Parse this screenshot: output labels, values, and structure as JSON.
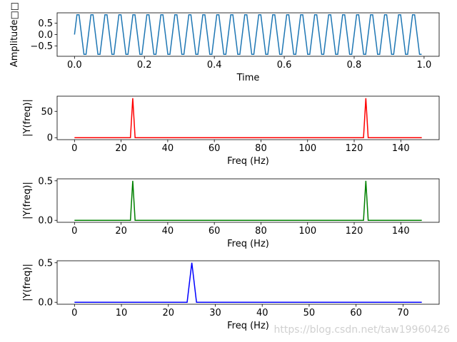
{
  "chart_data": [
    {
      "type": "line",
      "ylabel": "Amplitude□□",
      "xlabel": "Time",
      "color": "#1f77b4",
      "x": [
        0,
        0.007,
        0.013,
        0.02,
        0.027,
        0.033,
        0.04,
        0.047,
        0.053,
        0.06,
        0.067,
        0.073,
        0.08,
        0.087,
        0.093,
        0.1,
        0.107,
        0.113,
        0.12,
        0.127,
        0.133,
        0.14,
        0.147,
        0.153,
        0.16,
        0.167,
        0.173,
        0.18,
        0.187,
        0.193,
        0.2,
        0.207,
        0.213,
        0.22,
        0.227,
        0.233,
        0.24,
        0.247,
        0.253,
        0.26,
        0.267,
        0.273,
        0.28,
        0.287,
        0.293,
        0.3,
        0.307,
        0.313,
        0.32,
        0.327,
        0.333,
        0.34,
        0.347,
        0.353,
        0.36,
        0.367,
        0.373,
        0.38,
        0.387,
        0.393,
        0.4,
        0.407,
        0.413,
        0.42,
        0.427,
        0.433,
        0.44,
        0.447,
        0.453,
        0.46,
        0.467,
        0.473,
        0.48,
        0.487,
        0.493,
        0.5,
        0.507,
        0.513,
        0.52,
        0.527,
        0.533,
        0.54,
        0.547,
        0.553,
        0.56,
        0.567,
        0.573,
        0.58,
        0.587,
        0.593,
        0.6,
        0.607,
        0.613,
        0.62,
        0.627,
        0.633,
        0.64,
        0.647,
        0.653,
        0.66,
        0.667,
        0.673,
        0.68,
        0.687,
        0.693,
        0.7,
        0.707,
        0.713,
        0.72,
        0.727,
        0.733,
        0.74,
        0.747,
        0.753,
        0.76,
        0.767,
        0.773,
        0.78,
        0.787,
        0.793,
        0.8,
        0.807,
        0.813,
        0.82,
        0.827,
        0.833,
        0.84,
        0.847,
        0.853,
        0.86,
        0.867,
        0.873,
        0.88,
        0.887,
        0.893,
        0.9,
        0.907,
        0.913,
        0.92,
        0.927,
        0.933,
        0.94,
        0.947,
        0.953,
        0.96,
        0.967,
        0.973,
        0.98,
        0.987,
        0.993
      ],
      "values": [
        0,
        0.866,
        0.866,
        0,
        -0.866,
        -0.866,
        0,
        0.866,
        0.866,
        0,
        -0.866,
        -0.866,
        0,
        0.866,
        0.866,
        0,
        -0.866,
        -0.866,
        0,
        0.866,
        0.866,
        0,
        -0.866,
        -0.866,
        0,
        0.866,
        0.866,
        0,
        -0.866,
        -0.866,
        0,
        0.866,
        0.866,
        0,
        -0.866,
        -0.866,
        0,
        0.866,
        0.866,
        0,
        -0.866,
        -0.866,
        0,
        0.866,
        0.866,
        0,
        -0.866,
        -0.866,
        0,
        0.866,
        0.866,
        0,
        -0.866,
        -0.866,
        0,
        0.866,
        0.866,
        0,
        -0.866,
        -0.866,
        0,
        0.866,
        0.866,
        0,
        -0.866,
        -0.866,
        0,
        0.866,
        0.866,
        0,
        -0.866,
        -0.866,
        0,
        0.866,
        0.866,
        0,
        -0.866,
        -0.866,
        0,
        0.866,
        0.866,
        0,
        -0.866,
        -0.866,
        0,
        0.866,
        0.866,
        0,
        -0.866,
        -0.866,
        0,
        0.866,
        0.866,
        0,
        -0.866,
        -0.866,
        0,
        0.866,
        0.866,
        0,
        -0.866,
        -0.866,
        0,
        0.866,
        0.866,
        0,
        -0.866,
        -0.866,
        0,
        0.866,
        0.866,
        0,
        -0.866,
        -0.866,
        0,
        0.866,
        0.866,
        0,
        -0.866,
        -0.866,
        0,
        0.866,
        0.866,
        0,
        -0.866,
        -0.866,
        0,
        0.866,
        0.866,
        0,
        -0.866,
        -0.866,
        0,
        0.866,
        0.866,
        0,
        -0.866,
        -0.866,
        0,
        0.866,
        0.866,
        0,
        -0.866,
        -0.866,
        0,
        0.866,
        0.866,
        0,
        -0.866,
        -0.866
      ],
      "xlim": [
        -0.0497,
        1.0431
      ],
      "ylim": [
        -0.953,
        0.953
      ],
      "xticks": [
        {
          "value": 0,
          "label": "0.0"
        },
        0.2,
        0.4,
        0.6,
        0.8,
        {
          "value": 1,
          "label": "1.0"
        }
      ],
      "yticks": [
        {
          "value": -0.5,
          "label": "−0.5"
        },
        {
          "value": 0,
          "label": "0.0"
        },
        0.5
      ]
    },
    {
      "type": "line",
      "ylabel": "|Y(freq)|",
      "xlabel": "Freq (Hz)",
      "color": "#ff0000",
      "x": [
        0,
        1,
        2,
        3,
        4,
        5,
        6,
        7,
        8,
        9,
        10,
        11,
        12,
        13,
        14,
        15,
        16,
        17,
        18,
        19,
        20,
        21,
        22,
        23,
        24,
        25,
        26,
        27,
        28,
        29,
        30,
        31,
        32,
        33,
        34,
        35,
        36,
        37,
        38,
        39,
        40,
        41,
        42,
        43,
        44,
        45,
        46,
        47,
        48,
        49,
        50,
        51,
        52,
        53,
        54,
        55,
        56,
        57,
        58,
        59,
        60,
        61,
        62,
        63,
        64,
        65,
        66,
        67,
        68,
        69,
        70,
        71,
        72,
        73,
        74,
        75,
        76,
        77,
        78,
        79,
        80,
        81,
        82,
        83,
        84,
        85,
        86,
        87,
        88,
        89,
        90,
        91,
        92,
        93,
        94,
        95,
        96,
        97,
        98,
        99,
        100,
        101,
        102,
        103,
        104,
        105,
        106,
        107,
        108,
        109,
        110,
        111,
        112,
        113,
        114,
        115,
        116,
        117,
        118,
        119,
        120,
        121,
        122,
        123,
        124,
        125,
        126,
        127,
        128,
        129,
        130,
        131,
        132,
        133,
        134,
        135,
        136,
        137,
        138,
        139,
        140,
        141,
        142,
        143,
        144,
        145,
        146,
        147,
        148,
        149
      ],
      "values": [
        0,
        0,
        0,
        0,
        0,
        0,
        0,
        0,
        0,
        0,
        0,
        0,
        0,
        0,
        0,
        0,
        0,
        0,
        0,
        0,
        0,
        0,
        0,
        0,
        0,
        75,
        0,
        0,
        0,
        0,
        0,
        0,
        0,
        0,
        0,
        0,
        0,
        0,
        0,
        0,
        0,
        0,
        0,
        0,
        0,
        0,
        0,
        0,
        0,
        0,
        0,
        0,
        0,
        0,
        0,
        0,
        0,
        0,
        0,
        0,
        0,
        0,
        0,
        0,
        0,
        0,
        0,
        0,
        0,
        0,
        0,
        0,
        0,
        0,
        0,
        0,
        0,
        0,
        0,
        0,
        0,
        0,
        0,
        0,
        0,
        0,
        0,
        0,
        0,
        0,
        0,
        0,
        0,
        0,
        0,
        0,
        0,
        0,
        0,
        0,
        0,
        0,
        0,
        0,
        0,
        0,
        0,
        0,
        0,
        0,
        0,
        0,
        0,
        0,
        0,
        0,
        0,
        0,
        0,
        0,
        0,
        0,
        0,
        0,
        0,
        75,
        0,
        0,
        0,
        0,
        0,
        0,
        0,
        0,
        0,
        0,
        0,
        0,
        0,
        0,
        0,
        0,
        0,
        0,
        0,
        0,
        0,
        0,
        0,
        0
      ],
      "xlim": [
        -7.45,
        156.45
      ],
      "ylim": [
        -3.75,
        78.75
      ],
      "xticks": [
        0,
        20,
        40,
        60,
        80,
        100,
        120,
        140
      ],
      "yticks": [
        0,
        50
      ]
    },
    {
      "type": "line",
      "ylabel": "|Y(freq)|",
      "xlabel": "Freq (Hz)",
      "color": "#008000",
      "x": [
        0,
        1,
        2,
        3,
        4,
        5,
        6,
        7,
        8,
        9,
        10,
        11,
        12,
        13,
        14,
        15,
        16,
        17,
        18,
        19,
        20,
        21,
        22,
        23,
        24,
        25,
        26,
        27,
        28,
        29,
        30,
        31,
        32,
        33,
        34,
        35,
        36,
        37,
        38,
        39,
        40,
        41,
        42,
        43,
        44,
        45,
        46,
        47,
        48,
        49,
        50,
        51,
        52,
        53,
        54,
        55,
        56,
        57,
        58,
        59,
        60,
        61,
        62,
        63,
        64,
        65,
        66,
        67,
        68,
        69,
        70,
        71,
        72,
        73,
        74,
        75,
        76,
        77,
        78,
        79,
        80,
        81,
        82,
        83,
        84,
        85,
        86,
        87,
        88,
        89,
        90,
        91,
        92,
        93,
        94,
        95,
        96,
        97,
        98,
        99,
        100,
        101,
        102,
        103,
        104,
        105,
        106,
        107,
        108,
        109,
        110,
        111,
        112,
        113,
        114,
        115,
        116,
        117,
        118,
        119,
        120,
        121,
        122,
        123,
        124,
        125,
        126,
        127,
        128,
        129,
        130,
        131,
        132,
        133,
        134,
        135,
        136,
        137,
        138,
        139,
        140,
        141,
        142,
        143,
        144,
        145,
        146,
        147,
        148,
        149
      ],
      "values": [
        0,
        0,
        0,
        0,
        0,
        0,
        0,
        0,
        0,
        0,
        0,
        0,
        0,
        0,
        0,
        0,
        0,
        0,
        0,
        0,
        0,
        0,
        0,
        0,
        0,
        0.5,
        0,
        0,
        0,
        0,
        0,
        0,
        0,
        0,
        0,
        0,
        0,
        0,
        0,
        0,
        0,
        0,
        0,
        0,
        0,
        0,
        0,
        0,
        0,
        0,
        0,
        0,
        0,
        0,
        0,
        0,
        0,
        0,
        0,
        0,
        0,
        0,
        0,
        0,
        0,
        0,
        0,
        0,
        0,
        0,
        0,
        0,
        0,
        0,
        0,
        0,
        0,
        0,
        0,
        0,
        0,
        0,
        0,
        0,
        0,
        0,
        0,
        0,
        0,
        0,
        0,
        0,
        0,
        0,
        0,
        0,
        0,
        0,
        0,
        0,
        0,
        0,
        0,
        0,
        0,
        0,
        0,
        0,
        0,
        0,
        0,
        0,
        0,
        0,
        0,
        0,
        0,
        0,
        0,
        0,
        0,
        0,
        0,
        0,
        0,
        0.5,
        0,
        0,
        0,
        0,
        0,
        0,
        0,
        0,
        0,
        0,
        0,
        0,
        0,
        0,
        0,
        0,
        0,
        0,
        0,
        0,
        0,
        0,
        0,
        0
      ],
      "xlim": [
        -7.45,
        156.45
      ],
      "ylim": [
        -0.025,
        0.525
      ],
      "xticks": [
        0,
        20,
        40,
        60,
        80,
        100,
        120,
        140
      ],
      "yticks": [
        {
          "value": 0,
          "label": "0.0"
        },
        0.5
      ]
    },
    {
      "type": "line",
      "ylabel": "|Y(freq)|",
      "xlabel": "Freq (Hz)",
      "color": "#0000ff",
      "x": [
        0,
        1,
        2,
        3,
        4,
        5,
        6,
        7,
        8,
        9,
        10,
        11,
        12,
        13,
        14,
        15,
        16,
        17,
        18,
        19,
        20,
        21,
        22,
        23,
        24,
        25,
        26,
        27,
        28,
        29,
        30,
        31,
        32,
        33,
        34,
        35,
        36,
        37,
        38,
        39,
        40,
        41,
        42,
        43,
        44,
        45,
        46,
        47,
        48,
        49,
        50,
        51,
        52,
        53,
        54,
        55,
        56,
        57,
        58,
        59,
        60,
        61,
        62,
        63,
        64,
        65,
        66,
        67,
        68,
        69,
        70,
        71,
        72,
        73,
        74
      ],
      "values": [
        0,
        0,
        0,
        0,
        0,
        0,
        0,
        0,
        0,
        0,
        0,
        0,
        0,
        0,
        0,
        0,
        0,
        0,
        0,
        0,
        0,
        0,
        0,
        0,
        0,
        0.5,
        0,
        0,
        0,
        0,
        0,
        0,
        0,
        0,
        0,
        0,
        0,
        0,
        0,
        0,
        0,
        0,
        0,
        0,
        0,
        0,
        0,
        0,
        0,
        0,
        0,
        0,
        0,
        0,
        0,
        0,
        0,
        0,
        0,
        0,
        0,
        0,
        0,
        0,
        0,
        0,
        0,
        0,
        0,
        0,
        0,
        0,
        0,
        0,
        0
      ],
      "xlim": [
        -3.7,
        77.7
      ],
      "ylim": [
        -0.025,
        0.525
      ],
      "xticks": [
        0,
        10,
        20,
        30,
        40,
        50,
        60,
        70
      ],
      "yticks": [
        {
          "value": 0,
          "label": "0.0"
        },
        0.5
      ]
    }
  ],
  "watermark": "https://blog.csdn.net/taw19960426"
}
